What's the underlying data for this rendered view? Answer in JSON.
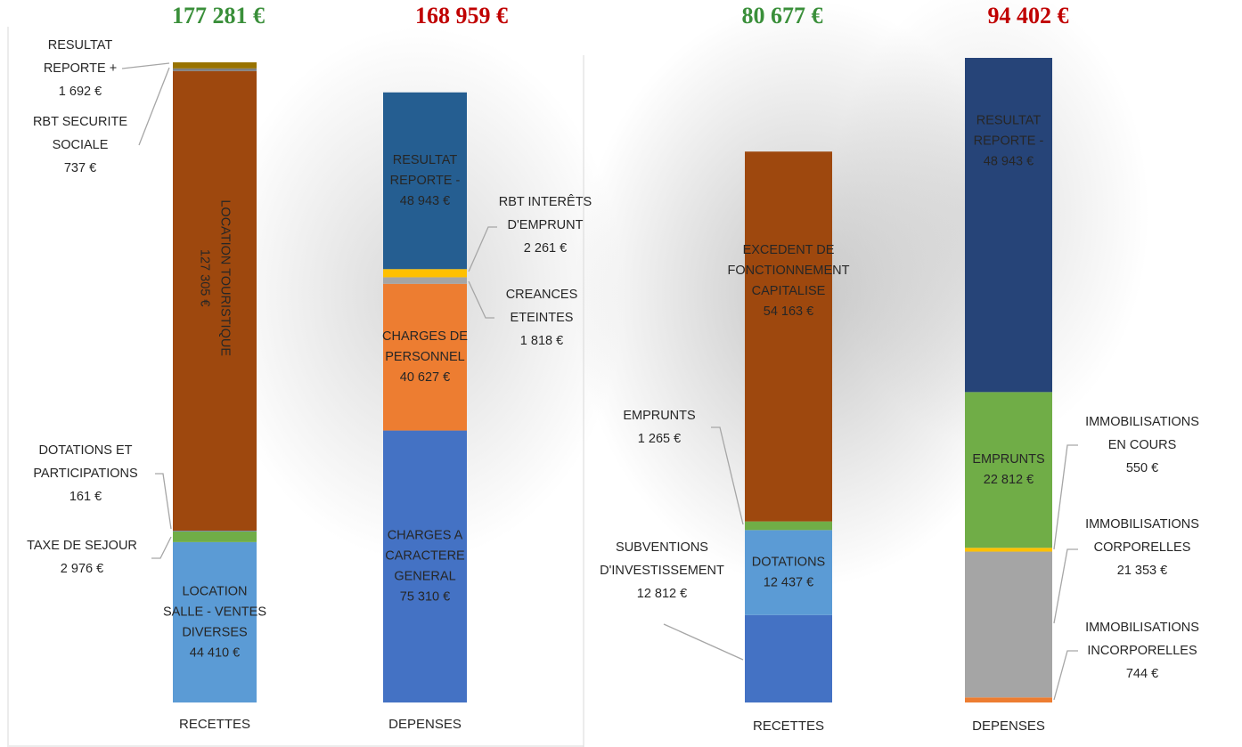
{
  "chart_data": [
    {
      "type": "bar",
      "stacked": true,
      "panel": "fonctionnement",
      "categories": [
        "RECETTES",
        "DEPENSES"
      ],
      "totals": [
        "177 281 €",
        "168 959 €"
      ],
      "totals_colors": [
        "#3a8f3a",
        "#c00000"
      ],
      "ylim": [
        0,
        177281
      ],
      "columns": [
        {
          "category": "RECETTES",
          "segments": [
            {
              "name": "LOCATION SALLE - VENTES DIVERSES",
              "value": 44410,
              "value_text": "44 410 €",
              "color": "#5b9bd5"
            },
            {
              "name": "TAXE DE SEJOUR",
              "value": 2976,
              "value_text": "2 976 €",
              "color": "#70ad47"
            },
            {
              "name": "DOTATIONS ET PARTICIPATIONS",
              "value": 161,
              "value_text": "161 €",
              "color": "#4472c4"
            },
            {
              "name": "LOCATION TOURISTIQUE",
              "value": 127305,
              "value_text": "127 305 €",
              "color": "#9e480e"
            },
            {
              "name": "RBT SECURITE SOCIALE",
              "value": 737,
              "value_text": "737 €",
              "color": "#7f7f7f"
            },
            {
              "name": "RESULTAT REPORTE +",
              "value": 1692,
              "value_text": "1 692 €",
              "color": "#997300"
            }
          ]
        },
        {
          "category": "DEPENSES",
          "segments": [
            {
              "name": "CHARGES A CARACTERE GENERAL",
              "value": 75310,
              "value_text": "75 310 €",
              "color": "#4472c4"
            },
            {
              "name": "CHARGES DE PERSONNEL",
              "value": 40627,
              "value_text": "40 627 €",
              "color": "#ed7d31"
            },
            {
              "name": "CREANCES ETEINTES",
              "value": 1818,
              "value_text": "1 818 €",
              "color": "#a5a5a5"
            },
            {
              "name": "RBT INTERÊTS D'EMPRUNT",
              "value": 2261,
              "value_text": "2 261 €",
              "color": "#ffc000"
            },
            {
              "name": "RESULTAT REPORTE -",
              "value": 48943,
              "value_text": "48 943 €",
              "color": "#255e91"
            }
          ]
        }
      ],
      "inside_labels": {
        "RECETTES": [
          {
            "lines": [
              "LOCATION",
              "SALLE - VENTES",
              "DIVERSES",
              "44 410 €"
            ]
          },
          {
            "lines": [
              "LOCATION TOURISTIQUE",
              "127 305 €"
            ],
            "rotated": true
          }
        ],
        "DEPENSES": [
          {
            "lines": [
              "CHARGES A",
              "CARACTERE",
              "GENERAL",
              "75 310 €"
            ]
          },
          {
            "lines": [
              "CHARGES DE",
              "PERSONNEL",
              "40 627 €"
            ]
          },
          {
            "lines": [
              "RESULTAT",
              "REPORTE -",
              "48 943 €"
            ]
          }
        ]
      },
      "callouts": [
        {
          "lines": [
            "RESULTAT",
            "REPORTE +",
            "1 692 €"
          ]
        },
        {
          "lines": [
            "RBT SECURITE",
            "SOCIALE",
            "737 €"
          ]
        },
        {
          "lines": [
            "DOTATIONS ET",
            "PARTICIPATIONS",
            "161 €"
          ]
        },
        {
          "lines": [
            "TAXE DE SEJOUR",
            "2 976 €"
          ]
        },
        {
          "lines": [
            "RBT INTERÊTS",
            "D'EMPRUNT",
            "2 261 €"
          ]
        },
        {
          "lines": [
            "CREANCES",
            "ETEINTES",
            "1 818 €"
          ]
        }
      ]
    },
    {
      "type": "bar",
      "stacked": true,
      "panel": "investissement",
      "categories": [
        "RECETTES",
        "DEPENSES"
      ],
      "totals": [
        "80 677 €",
        "94 402 €"
      ],
      "totals_colors": [
        "#3a8f3a",
        "#c00000"
      ],
      "ylim": [
        0,
        94402
      ],
      "columns": [
        {
          "category": "RECETTES",
          "segments": [
            {
              "name": "SUBVENTIONS D'INVESTISSEMENT",
              "value": 12812,
              "value_text": "12 812 €",
              "color": "#4472c4"
            },
            {
              "name": "DOTATIONS",
              "value": 12437,
              "value_text": "12 437 €",
              "color": "#5b9bd5"
            },
            {
              "name": "EMPRUNTS",
              "value": 1265,
              "value_text": "1 265 €",
              "color": "#70ad47"
            },
            {
              "name": "EXCEDENT DE FONCTIONNEMENT CAPITALISE",
              "value": 54163,
              "value_text": "54 163 €",
              "color": "#9e480e"
            }
          ]
        },
        {
          "category": "DEPENSES",
          "segments": [
            {
              "name": "IMMOBILISATIONS INCORPORELLES",
              "value": 744,
              "value_text": "744 €",
              "color": "#ed7d31"
            },
            {
              "name": "IMMOBILISATIONS CORPORELLES",
              "value": 21353,
              "value_text": "21 353 €",
              "color": "#a5a5a5"
            },
            {
              "name": "IMMOBILISATIONS EN COURS",
              "value": 550,
              "value_text": "550 €",
              "color": "#ffc000"
            },
            {
              "name": "EMPRUNTS",
              "value": 22812,
              "value_text": "22 812 €",
              "color": "#70ad47"
            },
            {
              "name": "RESULTAT REPORTE -",
              "value": 48943,
              "value_text": "48 943 €",
              "color": "#264478"
            }
          ]
        }
      ],
      "inside_labels": {
        "RECETTES": [
          {
            "lines": [
              "DOTATIONS",
              "12 437 €"
            ]
          },
          {
            "lines": [
              "EXCEDENT DE",
              "FONCTIONNEMENT",
              "CAPITALISE",
              "54 163 €"
            ]
          }
        ],
        "DEPENSES": [
          {
            "lines": [
              "EMPRUNTS",
              "22 812 €"
            ]
          },
          {
            "lines": [
              "RESULTAT",
              "REPORTE -",
              "48 943 €"
            ]
          }
        ]
      },
      "callouts": [
        {
          "lines": [
            "EMPRUNTS",
            "1 265 €"
          ]
        },
        {
          "lines": [
            "SUBVENTIONS",
            "D'INVESTISSEMENT",
            "12 812 €"
          ]
        },
        {
          "lines": [
            "IMMOBILISATIONS",
            "EN COURS",
            "550 €"
          ]
        },
        {
          "lines": [
            "IMMOBILISATIONS",
            "CORPORELLES",
            "21 353 €"
          ]
        },
        {
          "lines": [
            "IMMOBILISATIONS",
            "INCORPORELLES",
            "744 €"
          ]
        }
      ]
    }
  ]
}
